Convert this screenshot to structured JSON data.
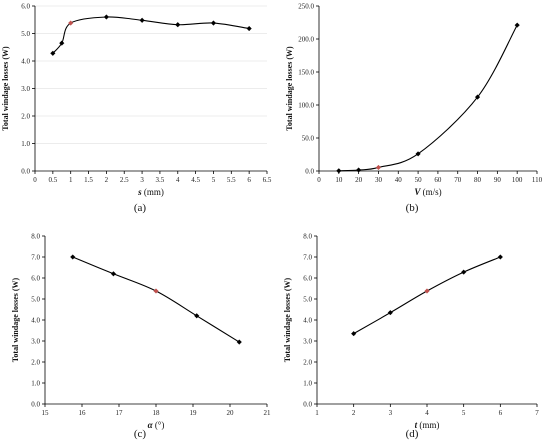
{
  "chart_data": [
    {
      "type": "line",
      "caption": "(a)",
      "ylabel": "Total windage losses (W)",
      "xlabel_var": "s",
      "xlabel_unit": " (mm)",
      "xlim": [
        0,
        6.5
      ],
      "ylim": [
        0,
        6.0
      ],
      "xticks": [
        "0",
        "0.5",
        "1",
        "1.5",
        "2",
        "2.5",
        "3",
        "3.5",
        "4",
        "4.5",
        "5",
        "5.5",
        "6",
        "6.5"
      ],
      "yticks": [
        "0.0",
        "1.0",
        "2.0",
        "3.0",
        "4.0",
        "5.0",
        "6.0"
      ],
      "grid": true,
      "x": [
        0.5,
        0.75,
        1,
        2,
        3,
        4,
        5,
        6
      ],
      "y": [
        4.28,
        4.65,
        5.38,
        5.6,
        5.48,
        5.32,
        5.38,
        5.18
      ],
      "highlight_index": 2
    },
    {
      "type": "line",
      "caption": "(b)",
      "ylabel": "Total windage losses (W)",
      "xlabel_var": "V",
      "xlabel_unit": " (m/s)",
      "xlim": [
        0,
        110
      ],
      "ylim": [
        0,
        250
      ],
      "xticks": [
        "0",
        "10",
        "20",
        "30",
        "40",
        "50",
        "60",
        "70",
        "80",
        "90",
        "100",
        "110"
      ],
      "yticks": [
        "0.0",
        "50.0",
        "100.0",
        "150.0",
        "200.0",
        "250.0"
      ],
      "grid": false,
      "x": [
        10,
        20,
        30,
        50,
        80,
        100
      ],
      "y": [
        0.3,
        1.5,
        5.38,
        26,
        112,
        221
      ],
      "highlight_index": 2
    },
    {
      "type": "line",
      "caption": "(c)",
      "ylabel": "Total windage losses (W)",
      "xlabel_var": "α",
      "xlabel_unit": " (°)",
      "xlim": [
        15,
        21
      ],
      "ylim": [
        0,
        8.0
      ],
      "xticks": [
        "15",
        "16",
        "17",
        "18",
        "19",
        "20",
        "21"
      ],
      "yticks": [
        "0.0",
        "1.0",
        "2.0",
        "3.0",
        "4.0",
        "5.0",
        "6.0",
        "7.0",
        "8.0"
      ],
      "grid": false,
      "x": [
        15.75,
        16.85,
        18.0,
        19.1,
        20.25
      ],
      "y": [
        7.0,
        6.2,
        5.38,
        4.2,
        2.95
      ],
      "highlight_index": 2
    },
    {
      "type": "line",
      "caption": "(d)",
      "ylabel": "Total windage losses (W)",
      "xlabel_var": "t",
      "xlabel_unit": " (mm)",
      "xlim": [
        1,
        7
      ],
      "ylim": [
        0,
        8.0
      ],
      "xticks": [
        "1",
        "2",
        "3",
        "4",
        "5",
        "6",
        "7"
      ],
      "yticks": [
        "0.0",
        "1.0",
        "2.0",
        "3.0",
        "4.0",
        "5.0",
        "6.0",
        "7.0",
        "8.0"
      ],
      "grid": false,
      "x": [
        2,
        3,
        4,
        5,
        6
      ],
      "y": [
        3.35,
        4.35,
        5.38,
        6.28,
        7.0
      ],
      "highlight_index": 2
    }
  ],
  "colors": {
    "marker": "#000000",
    "highlight": "#c0504d",
    "line": "#000000"
  }
}
